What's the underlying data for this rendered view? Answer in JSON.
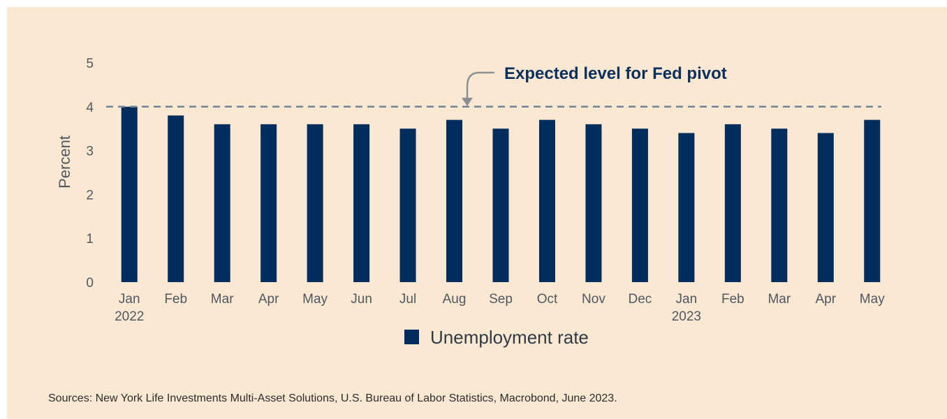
{
  "chart_data": {
    "type": "bar",
    "categories": [
      [
        "Jan",
        "2022"
      ],
      [
        "Feb"
      ],
      [
        "Mar"
      ],
      [
        "Apr"
      ],
      [
        "May"
      ],
      [
        "Jun"
      ],
      [
        "Jul"
      ],
      [
        "Aug"
      ],
      [
        "Sep"
      ],
      [
        "Oct"
      ],
      [
        "Nov"
      ],
      [
        "Dec"
      ],
      [
        "Jan",
        "2023"
      ],
      [
        "Feb"
      ],
      [
        "Mar"
      ],
      [
        "Apr"
      ],
      [
        "May"
      ]
    ],
    "series": [
      {
        "name": "Unemployment rate",
        "color": "#002d5c",
        "values": [
          4.0,
          3.8,
          3.6,
          3.6,
          3.6,
          3.6,
          3.5,
          3.7,
          3.5,
          3.7,
          3.6,
          3.5,
          3.4,
          3.6,
          3.5,
          3.4,
          3.7
        ]
      }
    ],
    "ylabel": "Percent",
    "xlabel": "",
    "ylim": [
      0,
      5
    ],
    "yticks": [
      0,
      1,
      2,
      3,
      4,
      5
    ],
    "grid": false,
    "legend_position": "bottom-center",
    "reference_line": {
      "value": 4,
      "style": "dashed",
      "color": "#6f8298",
      "label": "Expected level for Fed pivot",
      "label_color": "#0b2f5b"
    }
  },
  "source_note": "Sources: New York Life Investments Multi-Asset Solutions, U.S. Bureau of Labor Statistics, Macrobond, June 2023."
}
